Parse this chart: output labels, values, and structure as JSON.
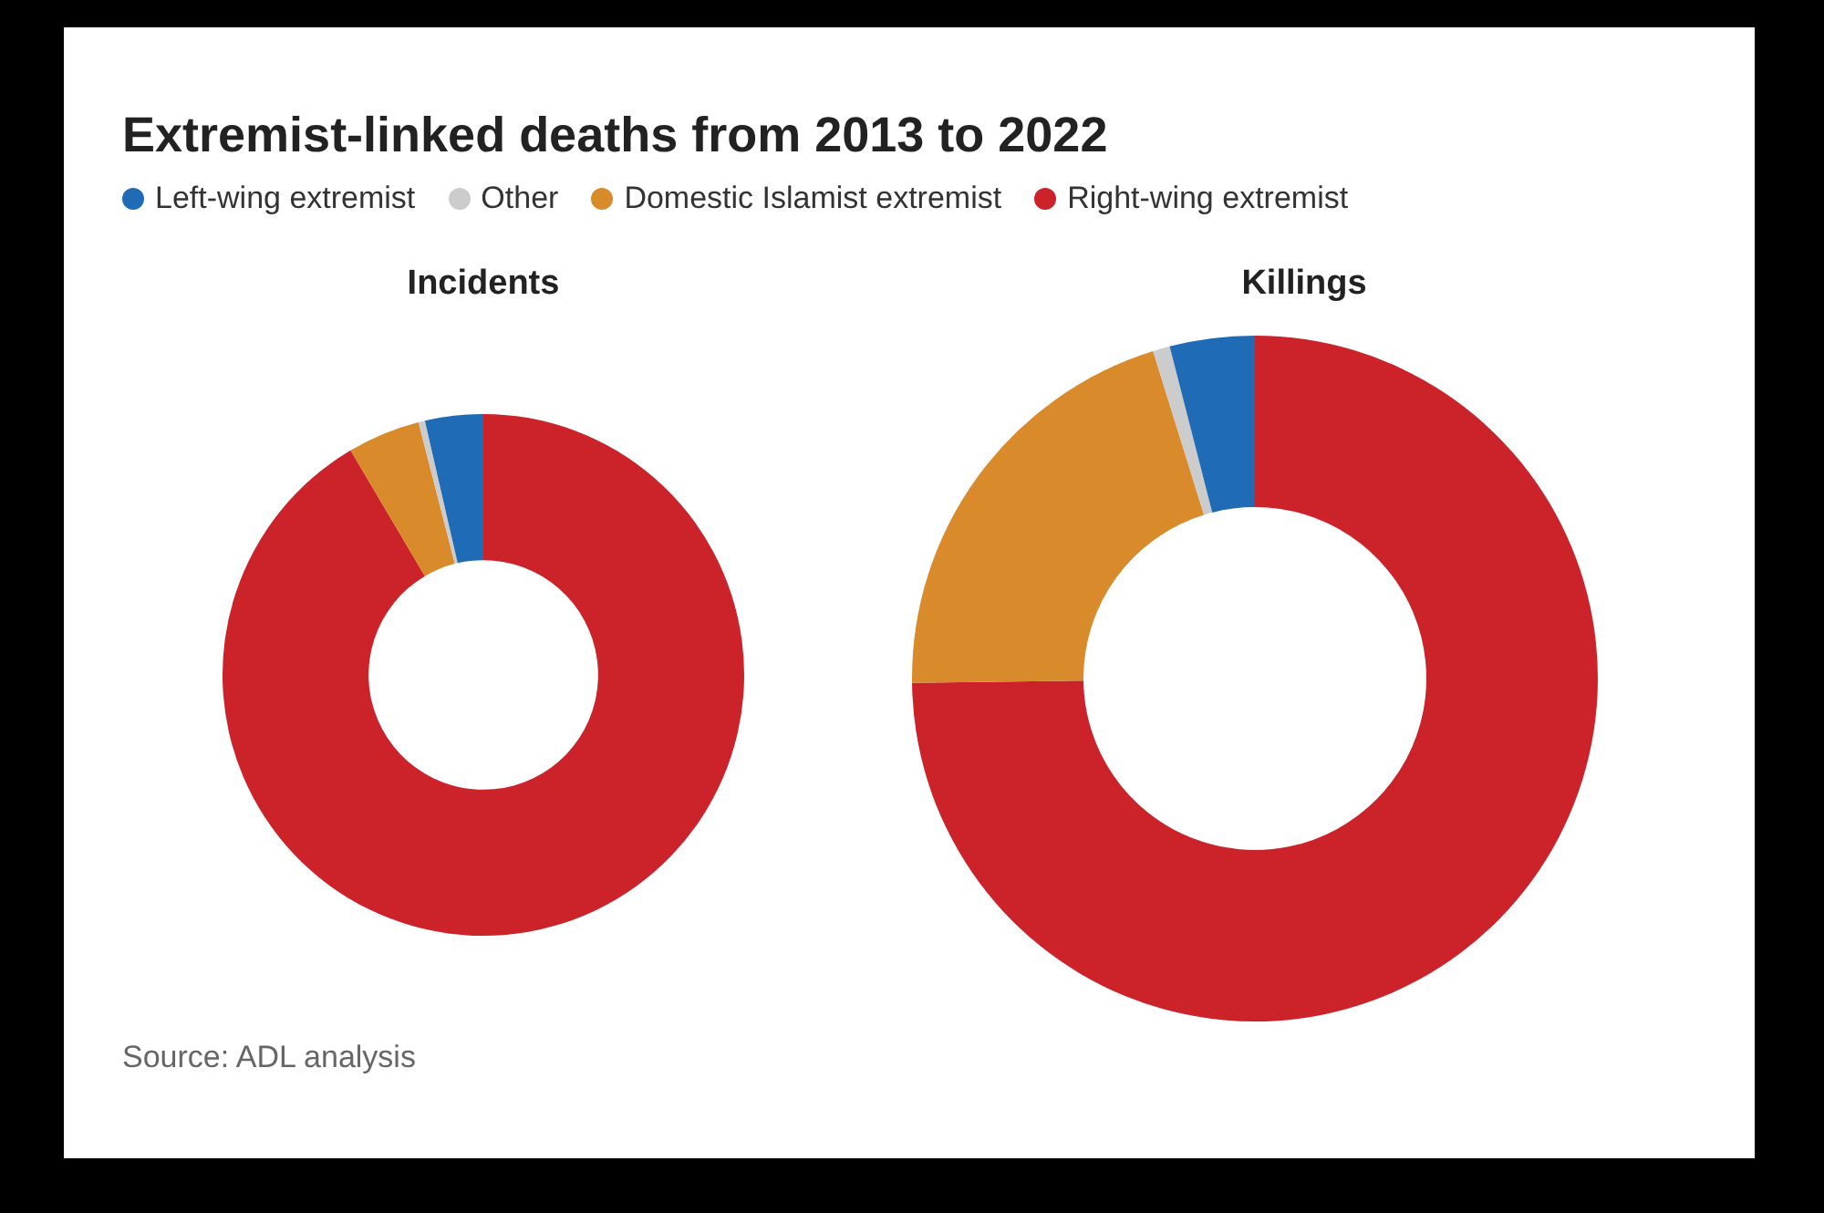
{
  "chart_data": {
    "type": "donut",
    "title": "Extremist-linked deaths from 2013 to 2022",
    "categories": [
      "Right-wing extremist",
      "Domestic Islamist extremist",
      "Other",
      "Left-wing extremist"
    ],
    "colors": [
      "#cc2229",
      "#d98a2b",
      "#cccccc",
      "#1f6bb5"
    ],
    "series": [
      {
        "name": "Incidents",
        "values": [
          91.5,
          4.5,
          0.4,
          3.6
        ]
      },
      {
        "name": "Killings",
        "values": [
          74.8,
          20.4,
          0.8,
          4.0
        ]
      }
    ],
    "legend": "top",
    "annotations": [
      "Source: ADL analysis"
    ]
  }
}
